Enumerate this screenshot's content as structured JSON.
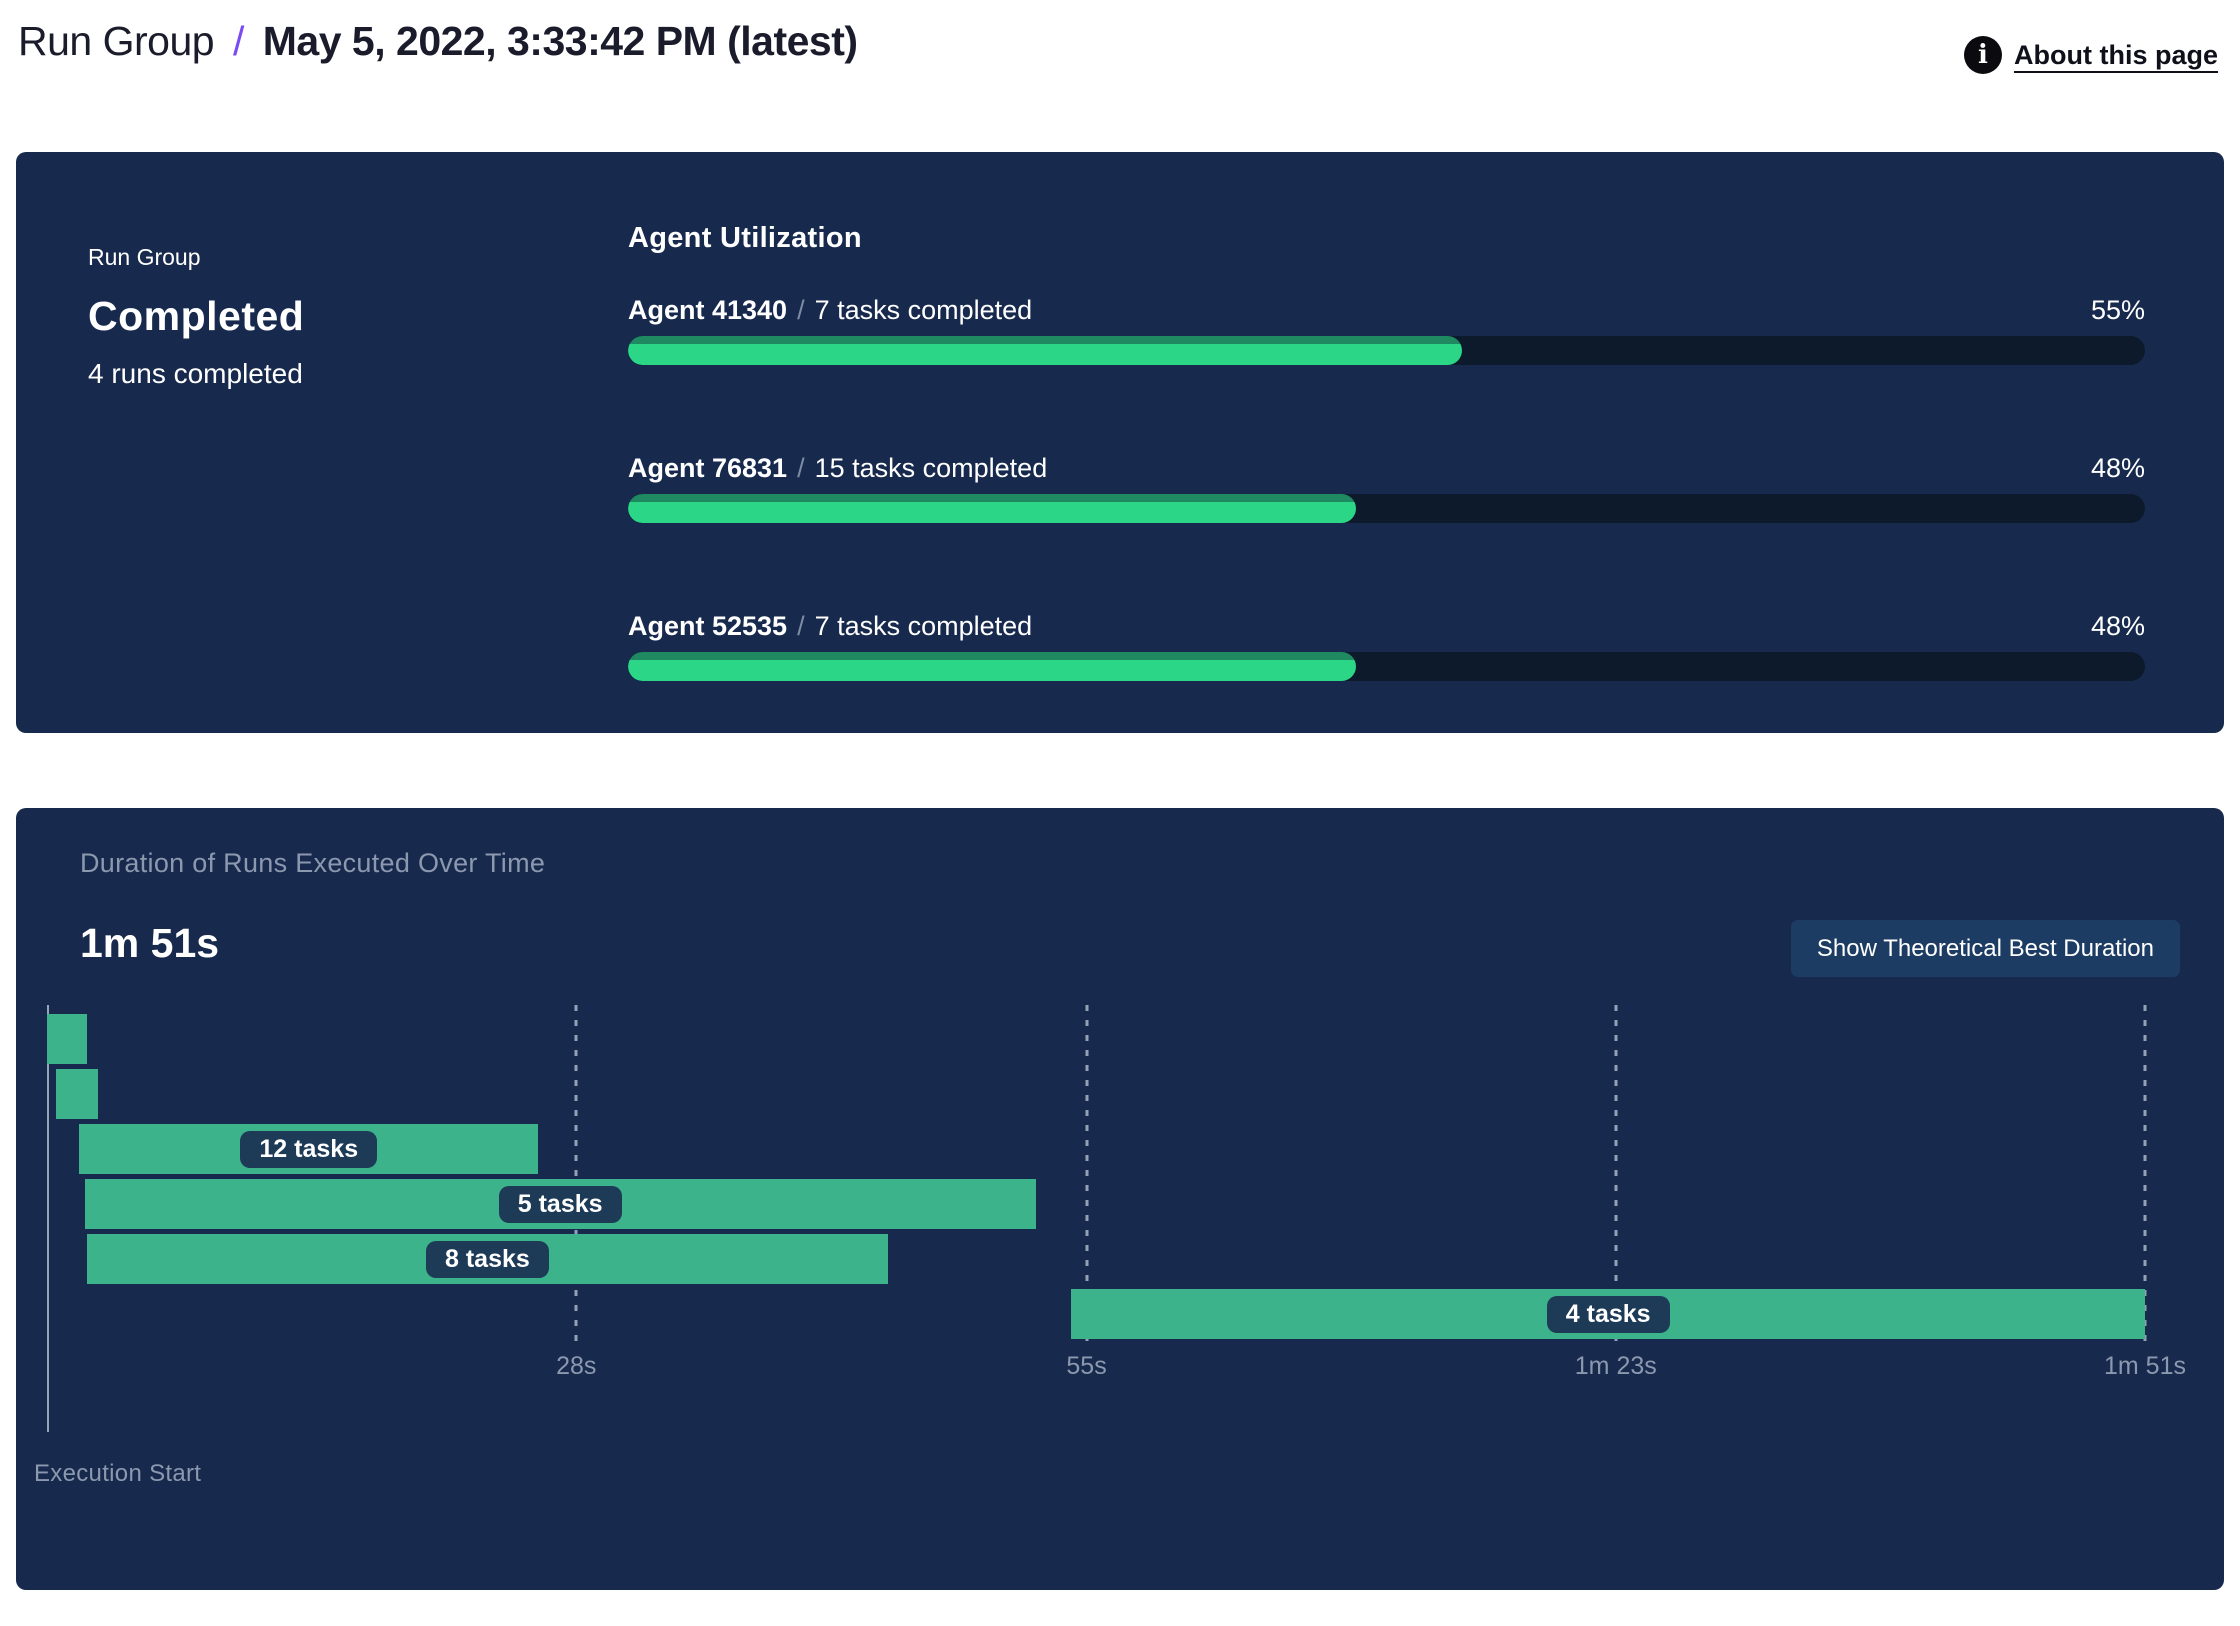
{
  "header": {
    "breadcrumb_root": "Run Group",
    "breadcrumb_separator": "/",
    "title": "May 5, 2022, 3:33:42 PM (latest)",
    "info_icon_glyph": "i",
    "about_link": "About this page"
  },
  "colors": {
    "card_bg": "#172a4e",
    "progress_track": "#0d1a2b",
    "progress_fill": "#2bd687",
    "gantt_bar": "#3cb38b",
    "accent_purple": "#7a4bf2",
    "muted_text": "#8c98ae",
    "button_bg": "#1d3c63"
  },
  "summary_card": {
    "group_label": "Run Group",
    "status": "Completed",
    "runs_completed": "4 runs completed",
    "utilization": {
      "title": "Agent Utilization",
      "separator": "/",
      "agents": [
        {
          "name": "Agent 41340",
          "tasks": "7 tasks completed",
          "percent_label": "55%",
          "percent": 55
        },
        {
          "name": "Agent 76831",
          "tasks": "15 tasks completed",
          "percent_label": "48%",
          "percent": 48
        },
        {
          "name": "Agent 52535",
          "tasks": "7 tasks completed",
          "percent_label": "48%",
          "percent": 48
        }
      ]
    }
  },
  "duration_card": {
    "title": "Duration of Runs Executed Over Time",
    "total_duration": "1m 51s",
    "button_label": "Show Theoretical Best Duration",
    "origin_label": "Execution Start"
  },
  "chart_data": {
    "type": "gantt",
    "title": "Duration of Runs Executed Over Time",
    "total_duration_label": "1m 51s",
    "x_unit": "seconds",
    "xlim": [
      0,
      111
    ],
    "x_origin_label": "Execution Start",
    "x_ticks": [
      {
        "value": 28,
        "label": "28s"
      },
      {
        "value": 55,
        "label": "55s"
      },
      {
        "value": 83,
        "label": "1m 23s"
      },
      {
        "value": 111,
        "label": "1m 51s"
      }
    ],
    "runs": [
      {
        "start_s": 0,
        "end_s": 2.1,
        "tasks_label": ""
      },
      {
        "start_s": 0.5,
        "end_s": 2.7,
        "tasks_label": ""
      },
      {
        "start_s": 1.7,
        "end_s": 26,
        "tasks_label": "12 tasks"
      },
      {
        "start_s": 2,
        "end_s": 52.3,
        "tasks_label": "5 tasks"
      },
      {
        "start_s": 2.1,
        "end_s": 44.5,
        "tasks_label": "8 tasks"
      },
      {
        "start_s": 54.2,
        "end_s": 111,
        "tasks_label": "4 tasks"
      }
    ]
  }
}
